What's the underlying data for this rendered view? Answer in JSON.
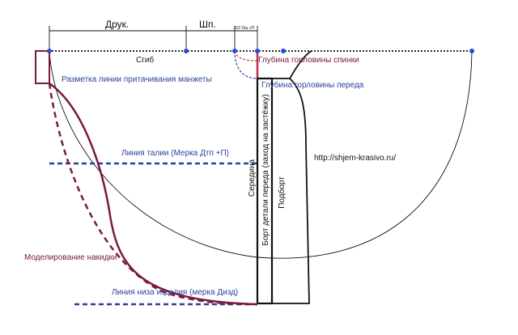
{
  "labels": {
    "druk": "Друк.",
    "shp": "Шп.",
    "small_measure": "1/2 Ош +П",
    "fold": "Сгиб",
    "back_neck_depth": "Глубина горловины спинки",
    "cuff_line": "Разметка линии притачивания манжеты",
    "front_neck_depth": "Глубина горловины переда",
    "waist_line": "Линия талии (Мерка Дтп +П)",
    "center": "Середина",
    "front_edge": "Борт детали переда (заход на застёжку)",
    "facing": "Подборт",
    "url": "http://shjem-krasivo.ru/",
    "cape_modeling": "Моделирование накидки",
    "hem_line": "Линия низа изделия (мерка Дизд)"
  },
  "colors": {
    "black": "#111111",
    "blue": "#2a3f9e",
    "maroon": "#7a1a3e",
    "red_dashed": "#c0304a",
    "dot_blue": "#2b4bd8"
  }
}
